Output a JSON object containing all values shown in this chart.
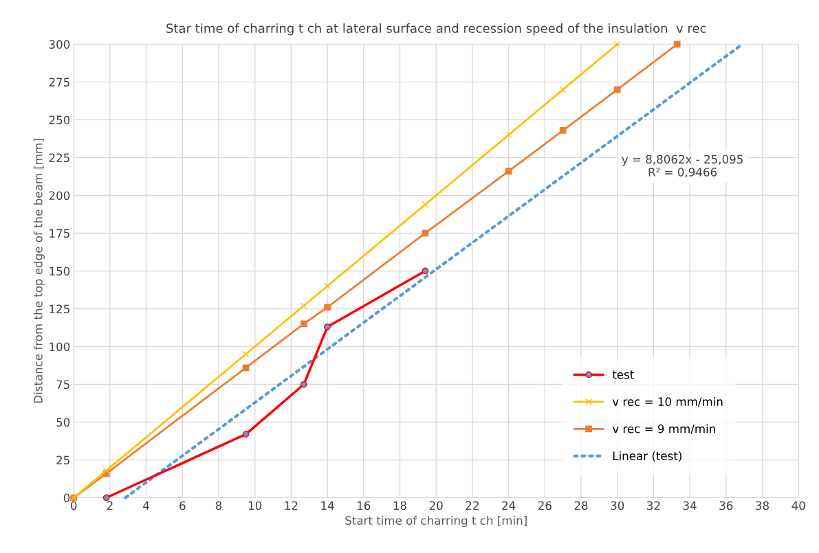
{
  "chart_data": {
    "type": "line",
    "title": "Star time of charring t ch at lateral surface and recession speed of the insulation  v rec",
    "xlabel": "Start time of charring t ch [min]",
    "ylabel": "Distance from the top edge of the beam [mm]",
    "series": [
      {
        "name": "test",
        "color": "#ff0000",
        "marker": "circle",
        "x": [
          1.8,
          9.5,
          12.7,
          14,
          19.4
        ],
        "values": [
          0,
          42,
          75,
          113,
          150
        ]
      },
      {
        "name": "v rec = 10 mm/min",
        "color": "#ffc000",
        "marker": "cross",
        "x": [
          0,
          1.8,
          9.5,
          12.7,
          14,
          19.4,
          24,
          27,
          30
        ],
        "values": [
          0,
          18,
          95,
          127,
          140,
          194,
          240,
          270,
          300
        ]
      },
      {
        "name": "v rec = 9 mm/min",
        "color": "#ed7d31",
        "marker": "square",
        "x": [
          0,
          1.8,
          9.5,
          12.7,
          14,
          19.4,
          24,
          27,
          30,
          33.3
        ],
        "values": [
          0,
          16,
          86,
          115,
          126,
          175,
          216,
          243,
          270,
          300
        ]
      },
      {
        "name": "Linear (test)",
        "color": "#5b9bd5",
        "marker": "none",
        "line_style": "dotted",
        "x": [
          2.85,
          36.9
        ],
        "values": [
          0,
          300
        ]
      }
    ],
    "annotations": [
      "y = 8,8062x - 25,095\nR² = 0,9466"
    ],
    "xlim": [
      0,
      40
    ],
    "xticks": [
      0,
      2,
      4,
      6,
      8,
      10,
      12,
      14,
      16,
      18,
      20,
      22,
      24,
      26,
      28,
      30,
      32,
      34,
      36,
      38,
      40
    ],
    "ylim": [
      0,
      300
    ],
    "yticks": [
      0,
      25,
      50,
      75,
      100,
      125,
      150,
      175,
      200,
      225,
      250,
      275,
      300
    ],
    "grid": true,
    "legend": "bottom right"
  }
}
